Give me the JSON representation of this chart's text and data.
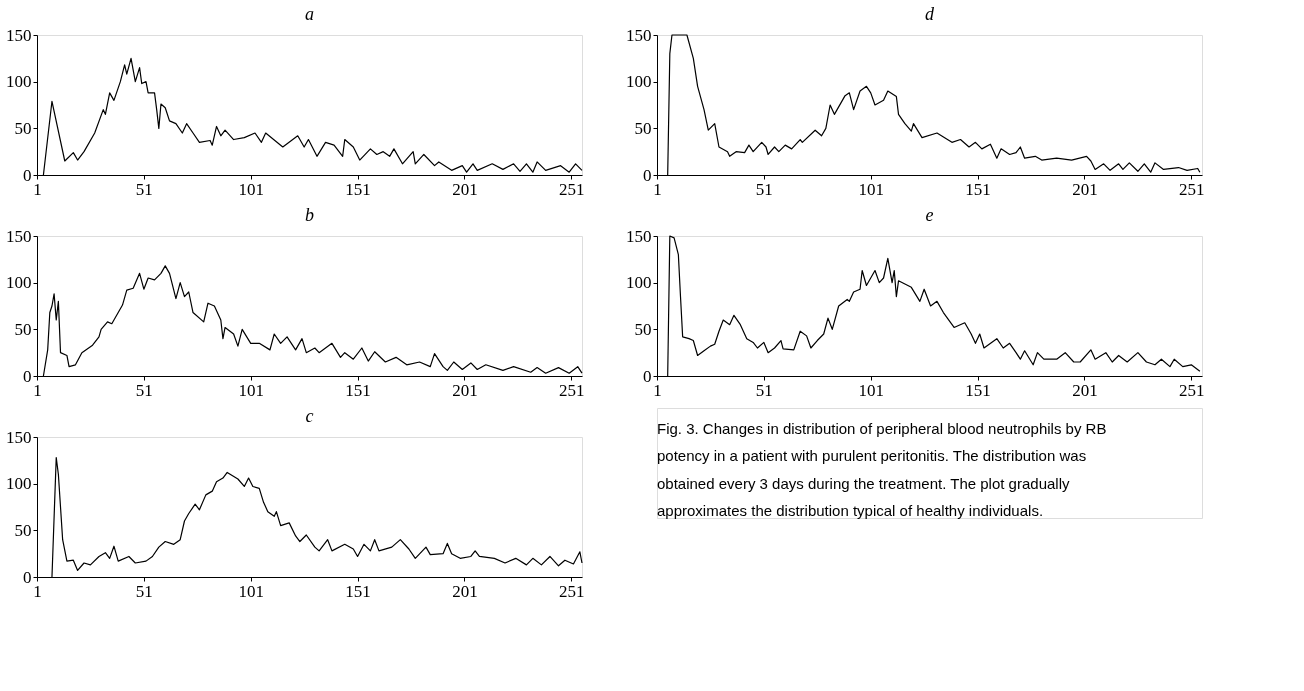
{
  "chart_data": [
    {
      "type": "line",
      "title": "a",
      "xlim": [
        1,
        256
      ],
      "xticks": [
        1,
        51,
        101,
        151,
        201,
        251
      ],
      "ylim": [
        0,
        150
      ],
      "yticks": [
        0,
        50,
        100,
        150
      ],
      "x": [
        4,
        8,
        14,
        18,
        20,
        23,
        28,
        32,
        33,
        35,
        37,
        40,
        42,
        43,
        45,
        47,
        49,
        50,
        52,
        53,
        56,
        57,
        58,
        59,
        61,
        63,
        66,
        69,
        71,
        74,
        77,
        82,
        83,
        85,
        87,
        89,
        93,
        98,
        103,
        106,
        108,
        116,
        123,
        126,
        128,
        132,
        136,
        140,
        144,
        145,
        149,
        152,
        157,
        160,
        163,
        166,
        168,
        172,
        177,
        178,
        182,
        187,
        189,
        195,
        200,
        202,
        205,
        207,
        214,
        219,
        224,
        227,
        230,
        233,
        235,
        239,
        246,
        250,
        253,
        256
      ],
      "series": [
        {
          "color": "#000000",
          "values": [
            0,
            79,
            15,
            24,
            16,
            25,
            45,
            70,
            65,
            88,
            80,
            100,
            118,
            108,
            125,
            100,
            115,
            98,
            100,
            88,
            88,
            70,
            50,
            76,
            72,
            58,
            55,
            45,
            55,
            45,
            35,
            37,
            32,
            52,
            42,
            48,
            38,
            40,
            45,
            35,
            45,
            30,
            42,
            30,
            38,
            20,
            35,
            32,
            20,
            38,
            30,
            16,
            28,
            22,
            25,
            20,
            28,
            12,
            25,
            12,
            22,
            10,
            14,
            5,
            10,
            3,
            12,
            5,
            12,
            6,
            12,
            4,
            12,
            3,
            14,
            5,
            10,
            3,
            12,
            5
          ]
        }
      ]
    },
    {
      "type": "line",
      "title": "b",
      "xlim": [
        1,
        256
      ],
      "xticks": [
        1,
        51,
        101,
        151,
        201,
        251
      ],
      "ylim": [
        0,
        150
      ],
      "yticks": [
        0,
        50,
        100,
        150
      ],
      "x": [
        4,
        6,
        7,
        8,
        9,
        10,
        11,
        12,
        15,
        16,
        19,
        22,
        27,
        30,
        31,
        34,
        36,
        41,
        43,
        46,
        49,
        51,
        53,
        56,
        59,
        61,
        63,
        66,
        68,
        70,
        72,
        74,
        79,
        81,
        84,
        87,
        88,
        89,
        93,
        95,
        97,
        101,
        105,
        110,
        112,
        115,
        118,
        122,
        125,
        127,
        131,
        133,
        139,
        143,
        145,
        149,
        153,
        156,
        159,
        164,
        169,
        174,
        180,
        185,
        187,
        191,
        193,
        196,
        200,
        204,
        207,
        211,
        219,
        224,
        232,
        235,
        239,
        245,
        250,
        254,
        256
      ],
      "series": [
        {
          "color": "#000000",
          "values": [
            0,
            28,
            68,
            75,
            88,
            60,
            80,
            25,
            22,
            10,
            12,
            25,
            33,
            42,
            50,
            58,
            56,
            76,
            92,
            94,
            110,
            93,
            105,
            103,
            110,
            118,
            110,
            83,
            100,
            85,
            90,
            68,
            58,
            78,
            75,
            60,
            40,
            52,
            45,
            32,
            50,
            35,
            35,
            28,
            45,
            35,
            42,
            28,
            40,
            25,
            30,
            25,
            35,
            20,
            25,
            18,
            30,
            16,
            26,
            15,
            20,
            12,
            15,
            10,
            24,
            10,
            6,
            15,
            7,
            14,
            7,
            12,
            6,
            10,
            4,
            9,
            3,
            9,
            3,
            10,
            3
          ]
        }
      ]
    },
    {
      "type": "line",
      "title": "c",
      "xlim": [
        1,
        256
      ],
      "xticks": [
        1,
        51,
        101,
        151,
        201,
        251
      ],
      "ylim": [
        0,
        150
      ],
      "yticks": [
        0,
        50,
        100,
        150
      ],
      "x": [
        8,
        10,
        11,
        13,
        15,
        18,
        20,
        23,
        26,
        30,
        33,
        35,
        37,
        39,
        44,
        47,
        52,
        55,
        58,
        61,
        65,
        68,
        70,
        72,
        75,
        77,
        80,
        83,
        85,
        88,
        90,
        95,
        98,
        100,
        102,
        105,
        107,
        109,
        112,
        113,
        115,
        119,
        122,
        124,
        127,
        131,
        133,
        137,
        139,
        145,
        149,
        151,
        154,
        157,
        159,
        161,
        167,
        171,
        175,
        178,
        183,
        185,
        191,
        193,
        195,
        199,
        204,
        206,
        208,
        215,
        220,
        225,
        230,
        233,
        237,
        241,
        245,
        248,
        252,
        255,
        256
      ],
      "series": [
        {
          "color": "#000000",
          "values": [
            0,
            128,
            110,
            40,
            17,
            18,
            7,
            15,
            13,
            22,
            26,
            20,
            33,
            17,
            22,
            15,
            17,
            22,
            32,
            38,
            35,
            40,
            60,
            68,
            78,
            72,
            88,
            92,
            102,
            106,
            112,
            105,
            97,
            106,
            97,
            95,
            80,
            70,
            65,
            70,
            55,
            58,
            44,
            38,
            45,
            32,
            28,
            40,
            28,
            35,
            30,
            22,
            35,
            28,
            40,
            28,
            32,
            40,
            30,
            20,
            32,
            24,
            25,
            36,
            25,
            20,
            22,
            28,
            22,
            20,
            15,
            20,
            13,
            20,
            13,
            22,
            12,
            18,
            14,
            27,
            15
          ]
        }
      ]
    },
    {
      "type": "line",
      "title": "d",
      "xlim": [
        1,
        256
      ],
      "xticks": [
        1,
        51,
        101,
        151,
        201,
        251
      ],
      "ylim": [
        0,
        150
      ],
      "yticks": [
        0,
        50,
        100,
        150
      ],
      "x": [
        6,
        7,
        8,
        15,
        18,
        20,
        23,
        25,
        28,
        30,
        34,
        35,
        38,
        42,
        44,
        46,
        50,
        52,
        53,
        56,
        58,
        61,
        64,
        68,
        69,
        75,
        78,
        80,
        82,
        84,
        89,
        91,
        93,
        96,
        99,
        101,
        103,
        107,
        109,
        113,
        114,
        117,
        120,
        121,
        125,
        132,
        139,
        143,
        147,
        150,
        153,
        157,
        160,
        162,
        166,
        169,
        171,
        173,
        178,
        181,
        188,
        195,
        202,
        204,
        206,
        210,
        213,
        217,
        219,
        222,
        226,
        229,
        232,
        234,
        238,
        245,
        249,
        254,
        255
      ],
      "series": [
        {
          "color": "#000000",
          "values": [
            0,
            130,
            150,
            150,
            125,
            95,
            70,
            48,
            55,
            30,
            25,
            20,
            25,
            24,
            32,
            25,
            35,
            30,
            22,
            30,
            25,
            32,
            28,
            38,
            35,
            48,
            42,
            50,
            75,
            65,
            85,
            88,
            70,
            90,
            95,
            88,
            75,
            80,
            90,
            84,
            65,
            55,
            47,
            55,
            40,
            45,
            35,
            38,
            30,
            35,
            28,
            33,
            18,
            28,
            22,
            24,
            30,
            18,
            20,
            16,
            18,
            16,
            20,
            15,
            6,
            12,
            5,
            12,
            6,
            13,
            4,
            12,
            3,
            13,
            6,
            8,
            5,
            7,
            3
          ]
        }
      ]
    },
    {
      "type": "line",
      "title": "e",
      "xlim": [
        1,
        256
      ],
      "xticks": [
        1,
        51,
        101,
        151,
        201,
        251
      ],
      "ylim": [
        0,
        150
      ],
      "yticks": [
        0,
        50,
        100,
        150
      ],
      "x": [
        6,
        7,
        9,
        11,
        12,
        13,
        16,
        18,
        20,
        23,
        26,
        28,
        30,
        32,
        35,
        37,
        40,
        43,
        46,
        48,
        51,
        53,
        56,
        59,
        60,
        65,
        68,
        71,
        73,
        76,
        79,
        81,
        83,
        86,
        90,
        91,
        93,
        96,
        97,
        99,
        103,
        105,
        107,
        109,
        111,
        112,
        113,
        114,
        120,
        124,
        126,
        129,
        132,
        135,
        140,
        145,
        148,
        150,
        152,
        154,
        160,
        163,
        166,
        169,
        171,
        173,
        177,
        179,
        182,
        188,
        192,
        196,
        199,
        204,
        206,
        211,
        214,
        217,
        221,
        226,
        230,
        234,
        237,
        241,
        243,
        247,
        251,
        255
      ],
      "series": [
        {
          "color": "#000000",
          "values": [
            0,
            150,
            148,
            130,
            85,
            42,
            40,
            38,
            22,
            27,
            32,
            34,
            48,
            60,
            55,
            65,
            55,
            40,
            36,
            30,
            36,
            25,
            30,
            38,
            29,
            28,
            48,
            43,
            30,
            38,
            45,
            62,
            50,
            75,
            82,
            80,
            90,
            93,
            113,
            97,
            113,
            100,
            105,
            126,
            100,
            113,
            85,
            102,
            95,
            80,
            93,
            75,
            80,
            68,
            52,
            57,
            45,
            35,
            45,
            30,
            40,
            30,
            35,
            25,
            18,
            27,
            12,
            25,
            18,
            18,
            25,
            15,
            15,
            28,
            18,
            25,
            15,
            22,
            15,
            25,
            15,
            12,
            18,
            10,
            18,
            10,
            12,
            5
          ]
        }
      ]
    },
    {
      "type": "other",
      "annotations": [
        "Fig. 3. Changes in distribution of peripheral blood neutrophils by RB potency in a patient with purulent peritonitis. The distribution was obtained every 3 days during the treatment. The plot gradually approximates the distribution typical of healthy individuals."
      ]
    }
  ]
}
